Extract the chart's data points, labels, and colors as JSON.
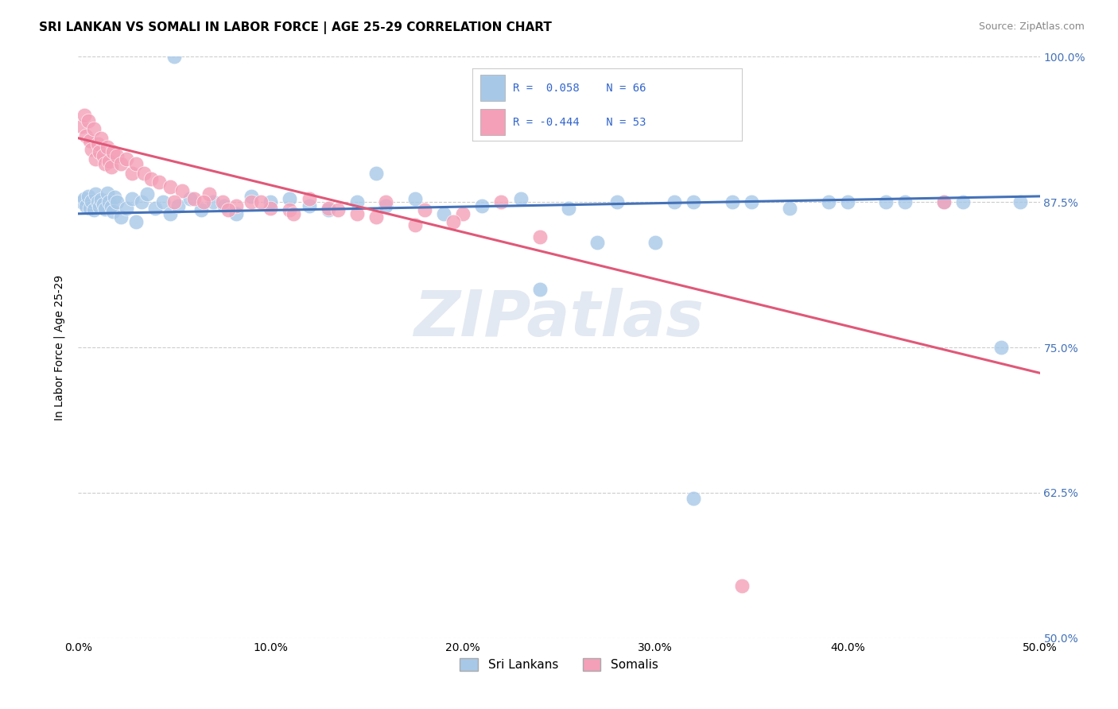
{
  "title": "SRI LANKAN VS SOMALI IN LABOR FORCE | AGE 25-29 CORRELATION CHART",
  "source": "Source: ZipAtlas.com",
  "ylabel_label": "In Labor Force | Age 25-29",
  "legend_labels": [
    "Sri Lankans",
    "Somalis"
  ],
  "blue_R": 0.058,
  "blue_N": 66,
  "pink_R": -0.444,
  "pink_N": 53,
  "xlim": [
    0.0,
    0.5
  ],
  "ylim": [
    0.5,
    1.0
  ],
  "blue_color": "#a8c8e8",
  "pink_color": "#f4a0b8",
  "blue_line_color": "#4472b8",
  "pink_line_color": "#e05878",
  "watermark": "ZIPatlas",
  "background_color": "#ffffff",
  "grid_color": "#cccccc",
  "blue_scatter_x": [
    0.002,
    0.003,
    0.004,
    0.005,
    0.006,
    0.007,
    0.008,
    0.009,
    0.01,
    0.011,
    0.012,
    0.013,
    0.014,
    0.015,
    0.016,
    0.017,
    0.018,
    0.019,
    0.02,
    0.022,
    0.025,
    0.028,
    0.03,
    0.033,
    0.036,
    0.04,
    0.044,
    0.048,
    0.052,
    0.058,
    0.064,
    0.07,
    0.076,
    0.082,
    0.09,
    0.1,
    0.11,
    0.12,
    0.13,
    0.145,
    0.16,
    0.175,
    0.19,
    0.21,
    0.23,
    0.255,
    0.28,
    0.31,
    0.34,
    0.37,
    0.4,
    0.43,
    0.46,
    0.49,
    0.27,
    0.3,
    0.32,
    0.35,
    0.39,
    0.42,
    0.45,
    0.48,
    0.05,
    0.155,
    0.24,
    0.32
  ],
  "blue_scatter_y": [
    0.875,
    0.878,
    0.872,
    0.88,
    0.87,
    0.876,
    0.868,
    0.882,
    0.875,
    0.871,
    0.877,
    0.873,
    0.869,
    0.883,
    0.875,
    0.871,
    0.867,
    0.879,
    0.875,
    0.862,
    0.87,
    0.878,
    0.858,
    0.875,
    0.882,
    0.87,
    0.875,
    0.865,
    0.872,
    0.878,
    0.868,
    0.875,
    0.872,
    0.865,
    0.88,
    0.875,
    0.878,
    0.872,
    0.868,
    0.875,
    0.872,
    0.878,
    0.865,
    0.872,
    0.878,
    0.87,
    0.875,
    0.875,
    0.875,
    0.87,
    0.875,
    0.875,
    0.875,
    0.875,
    0.84,
    0.84,
    0.875,
    0.875,
    0.875,
    0.875,
    0.875,
    0.75,
    1.0,
    0.9,
    0.8,
    0.62
  ],
  "pink_scatter_x": [
    0.002,
    0.003,
    0.004,
    0.005,
    0.006,
    0.007,
    0.008,
    0.009,
    0.01,
    0.011,
    0.012,
    0.013,
    0.014,
    0.015,
    0.016,
    0.017,
    0.018,
    0.02,
    0.022,
    0.025,
    0.028,
    0.03,
    0.034,
    0.038,
    0.042,
    0.048,
    0.054,
    0.06,
    0.068,
    0.075,
    0.082,
    0.09,
    0.1,
    0.11,
    0.12,
    0.13,
    0.145,
    0.16,
    0.18,
    0.2,
    0.05,
    0.065,
    0.078,
    0.095,
    0.112,
    0.135,
    0.155,
    0.175,
    0.195,
    0.22,
    0.24,
    0.345,
    0.45
  ],
  "pink_scatter_y": [
    0.94,
    0.95,
    0.932,
    0.945,
    0.928,
    0.92,
    0.938,
    0.912,
    0.925,
    0.918,
    0.93,
    0.915,
    0.908,
    0.922,
    0.91,
    0.905,
    0.918,
    0.915,
    0.908,
    0.912,
    0.9,
    0.908,
    0.9,
    0.895,
    0.892,
    0.888,
    0.885,
    0.878,
    0.882,
    0.875,
    0.872,
    0.875,
    0.87,
    0.868,
    0.878,
    0.87,
    0.865,
    0.875,
    0.868,
    0.865,
    0.875,
    0.875,
    0.868,
    0.875,
    0.865,
    0.868,
    0.862,
    0.855,
    0.858,
    0.875,
    0.845,
    0.545,
    0.875
  ],
  "blue_line_x": [
    0.0,
    0.5
  ],
  "blue_line_y": [
    0.865,
    0.88
  ],
  "pink_line_x": [
    0.0,
    0.5
  ],
  "pink_line_y": [
    0.93,
    0.728
  ]
}
